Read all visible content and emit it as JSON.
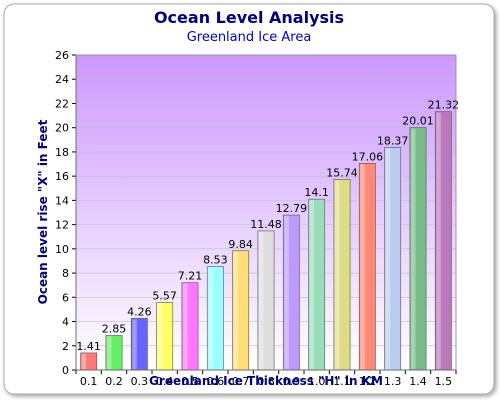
{
  "chart_data": {
    "type": "bar",
    "title": "Ocean Level Analysis",
    "subtitle": "Greenland Ice Area",
    "xlabel": "Greenland Ice Thickness \"H\" in KM",
    "ylabel": "Ocean level rise \"X\" in Feet",
    "categories": [
      "0.1",
      "0.2",
      "0.3",
      "0.4",
      "0.5",
      "0.6",
      "0.7",
      "0.8",
      "0.9",
      "1.0",
      "1.1",
      "1.2",
      "1.3",
      "1.4",
      "1.5"
    ],
    "values": [
      1.41,
      2.85,
      4.26,
      5.57,
      7.21,
      8.53,
      9.84,
      11.48,
      12.79,
      14.1,
      15.74,
      17.06,
      18.37,
      20.01,
      21.32
    ],
    "value_labels": [
      "1.41",
      "2.85",
      "4.26",
      "5.57",
      "7.21",
      "8.53",
      "9.84",
      "11.48",
      "12.79",
      "14.1",
      "15.74",
      "17.06",
      "18.37",
      "20.01",
      "21.32"
    ],
    "ylim": [
      0,
      26
    ],
    "yticks": [
      "0",
      "2",
      "4",
      "6",
      "8",
      "10",
      "12",
      "14",
      "16",
      "18",
      "20",
      "22",
      "24",
      "26"
    ],
    "grid": true,
    "bar_colors": [
      "#ff7777",
      "#66ee66",
      "#6666ff",
      "#ffff66",
      "#ff77ff",
      "#99ffff",
      "#ffdd77",
      "#dddddd",
      "#bb99ff",
      "#99ddbb",
      "#dddd88",
      "#ff8877",
      "#bbccee",
      "#77bb88",
      "#bb77bb"
    ],
    "colors": {
      "title": "#000080",
      "subtitle": "#0000cc",
      "axis_label": "#000080",
      "plot_top": "#cc99ff",
      "plot_bottom": "#ffffff",
      "grid": "#c0c0c0"
    }
  }
}
